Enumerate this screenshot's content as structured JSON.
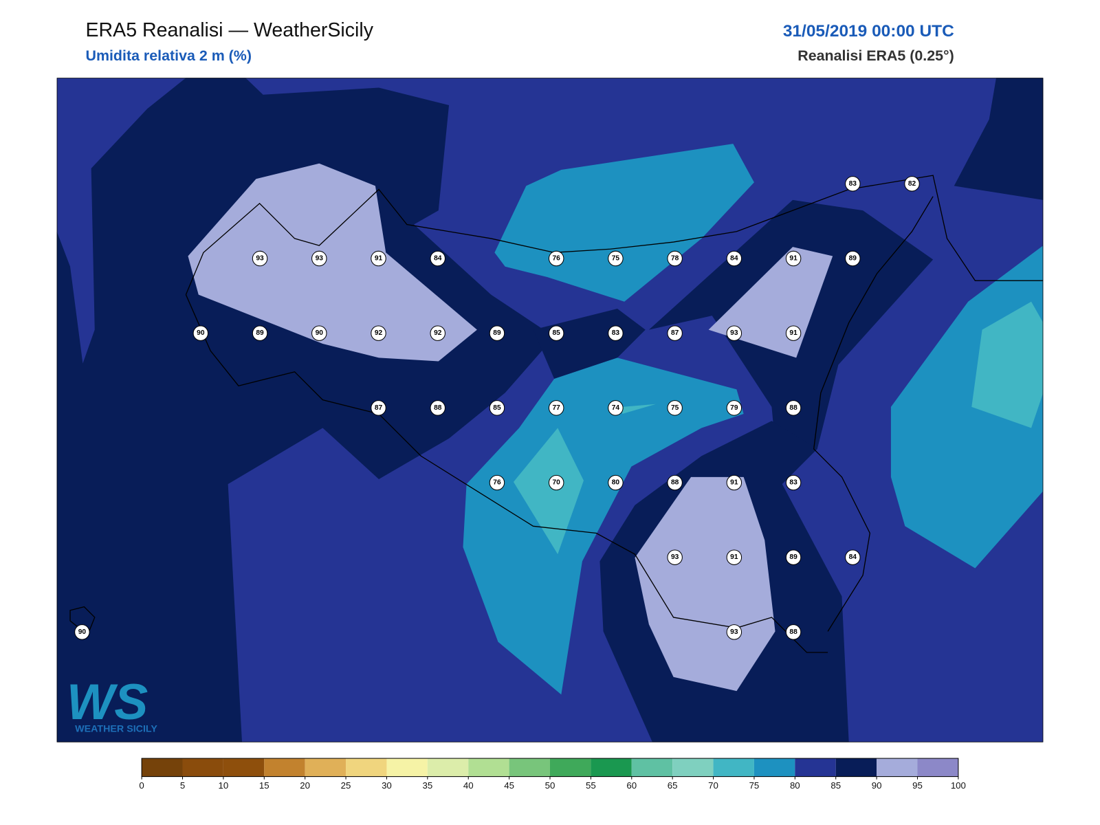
{
  "header": {
    "title": "ERA5 Reanalisi — WeatherSicily",
    "subtitle": "Umidita relativa 2 m (%)",
    "datetime": "31/05/2019 00:00 UTC",
    "source": "Reanalisi ERA5 (0.25°)"
  },
  "stations": {
    "rows": [
      [
        null,
        null,
        null,
        null,
        null,
        null,
        null,
        null,
        null,
        null,
        null,
        null,
        null,
        83,
        82
      ],
      [
        null,
        null,
        null,
        93,
        93,
        91,
        84,
        null,
        76,
        75,
        78,
        84,
        91,
        89,
        null
      ],
      [
        null,
        null,
        90,
        89,
        90,
        92,
        92,
        89,
        85,
        83,
        87,
        93,
        91,
        null,
        null
      ],
      [
        null,
        null,
        null,
        null,
        null,
        87,
        88,
        85,
        77,
        74,
        75,
        79,
        88,
        null,
        null
      ],
      [
        null,
        null,
        null,
        null,
        null,
        null,
        null,
        76,
        70,
        80,
        88,
        91,
        83,
        null,
        null
      ],
      [
        null,
        null,
        null,
        null,
        null,
        null,
        null,
        null,
        null,
        null,
        93,
        91,
        89,
        84,
        null
      ],
      [
        90,
        null,
        null,
        null,
        null,
        null,
        null,
        null,
        null,
        null,
        null,
        93,
        88,
        null,
        null
      ]
    ]
  },
  "colorbar": {
    "ticks": [
      0,
      5,
      10,
      15,
      20,
      25,
      30,
      35,
      40,
      45,
      50,
      55,
      60,
      65,
      70,
      75,
      80,
      85,
      90,
      95,
      100
    ],
    "colors": [
      "#75420a",
      "#8a4c0c",
      "#8e4f0c",
      "#c2822e",
      "#e0b058",
      "#f0d57e",
      "#f6f3a6",
      "#dcedaa",
      "#b1df93",
      "#78c57b",
      "#3fa95a",
      "#1a9850",
      "#5fc1a3",
      "#7fd0bf",
      "#41b6c4",
      "#1d91c0",
      "#253494",
      "#081d58",
      "#a5acdb",
      "#8c88c8"
    ]
  },
  "logo": {
    "letters": "WS",
    "caption": "WEATHER SICILY"
  }
}
